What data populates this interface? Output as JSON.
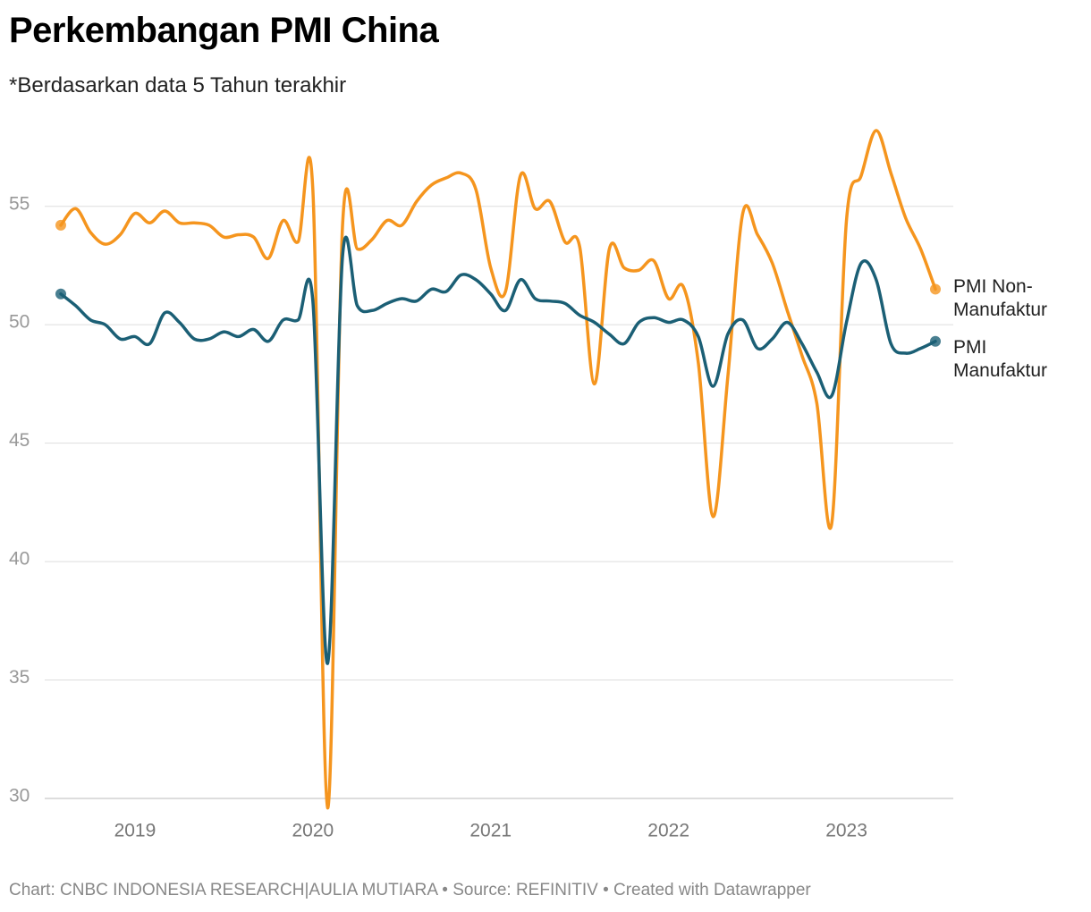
{
  "chart_data": {
    "type": "line",
    "title": "Perkembangan PMI China",
    "subtitle": "*Berdasarkan data 5 Tahun terakhir",
    "source": "Chart: CNBC INDONESIA RESEARCH|AULIA MUTIARA • Source: REFINITIV • Created with Datawrapper",
    "x": [
      2018.583,
      2018.667,
      2018.75,
      2018.833,
      2018.917,
      2019,
      2019.083,
      2019.167,
      2019.25,
      2019.333,
      2019.417,
      2019.5,
      2019.583,
      2019.667,
      2019.75,
      2019.833,
      2019.917,
      2020,
      2020.083,
      2020.167,
      2020.25,
      2020.333,
      2020.417,
      2020.5,
      2020.583,
      2020.667,
      2020.75,
      2020.833,
      2020.917,
      2021,
      2021.083,
      2021.167,
      2021.25,
      2021.333,
      2021.417,
      2021.5,
      2021.583,
      2021.667,
      2021.75,
      2021.833,
      2021.917,
      2022,
      2022.083,
      2022.167,
      2022.25,
      2022.333,
      2022.417,
      2022.5,
      2022.583,
      2022.667,
      2022.75,
      2022.833,
      2022.917,
      2023,
      2023.083,
      2023.167,
      2023.25,
      2023.333,
      2023.417,
      2023.5
    ],
    "series": [
      {
        "name": "PMI Non-Manufaktur",
        "color": "#f5951e",
        "values": [
          54.2,
          54.9,
          53.9,
          53.4,
          53.8,
          54.7,
          54.3,
          54.8,
          54.3,
          54.3,
          54.2,
          53.7,
          53.8,
          53.7,
          52.8,
          54.4,
          53.5,
          55.7,
          29.6,
          54.2,
          53.2,
          53.6,
          54.4,
          54.2,
          55.2,
          55.9,
          56.2,
          56.4,
          55.7,
          52.4,
          51.4,
          56.3,
          54.9,
          55.2,
          53.5,
          53.3,
          47.5,
          53.2,
          52.4,
          52.3,
          52.7,
          51.1,
          51.6,
          48.4,
          41.9,
          47.8,
          54.7,
          53.8,
          52.6,
          50.6,
          48.7,
          46.7,
          41.6,
          54.4,
          56.3,
          58.2,
          56.4,
          54.5,
          53.2,
          51.5
        ]
      },
      {
        "name": "PMI Manufaktur",
        "color": "#1b5f75",
        "values": [
          51.3,
          50.8,
          50.2,
          50.0,
          49.4,
          49.5,
          49.2,
          50.5,
          50.1,
          49.4,
          49.4,
          49.7,
          49.5,
          49.8,
          49.3,
          50.2,
          50.2,
          51.0,
          35.7,
          52.9,
          50.8,
          50.6,
          50.9,
          51.1,
          51.0,
          51.5,
          51.4,
          52.1,
          51.9,
          51.3,
          50.6,
          51.9,
          51.1,
          51.0,
          50.9,
          50.4,
          50.1,
          49.6,
          49.2,
          50.1,
          50.3,
          50.1,
          50.2,
          49.5,
          47.4,
          49.6,
          50.2,
          49.0,
          49.4,
          50.1,
          49.2,
          48.0,
          47.0,
          50.1,
          52.6,
          51.9,
          49.2,
          48.8,
          49.0,
          49.3
        ]
      }
    ],
    "xlim": [
      2018.583,
      2023.5
    ],
    "xticks": [
      2019,
      2020,
      2021,
      2022,
      2023
    ],
    "ylim": [
      30,
      58.5
    ],
    "yticks": [
      30,
      35,
      40,
      45,
      50,
      55
    ],
    "grid": true
  }
}
